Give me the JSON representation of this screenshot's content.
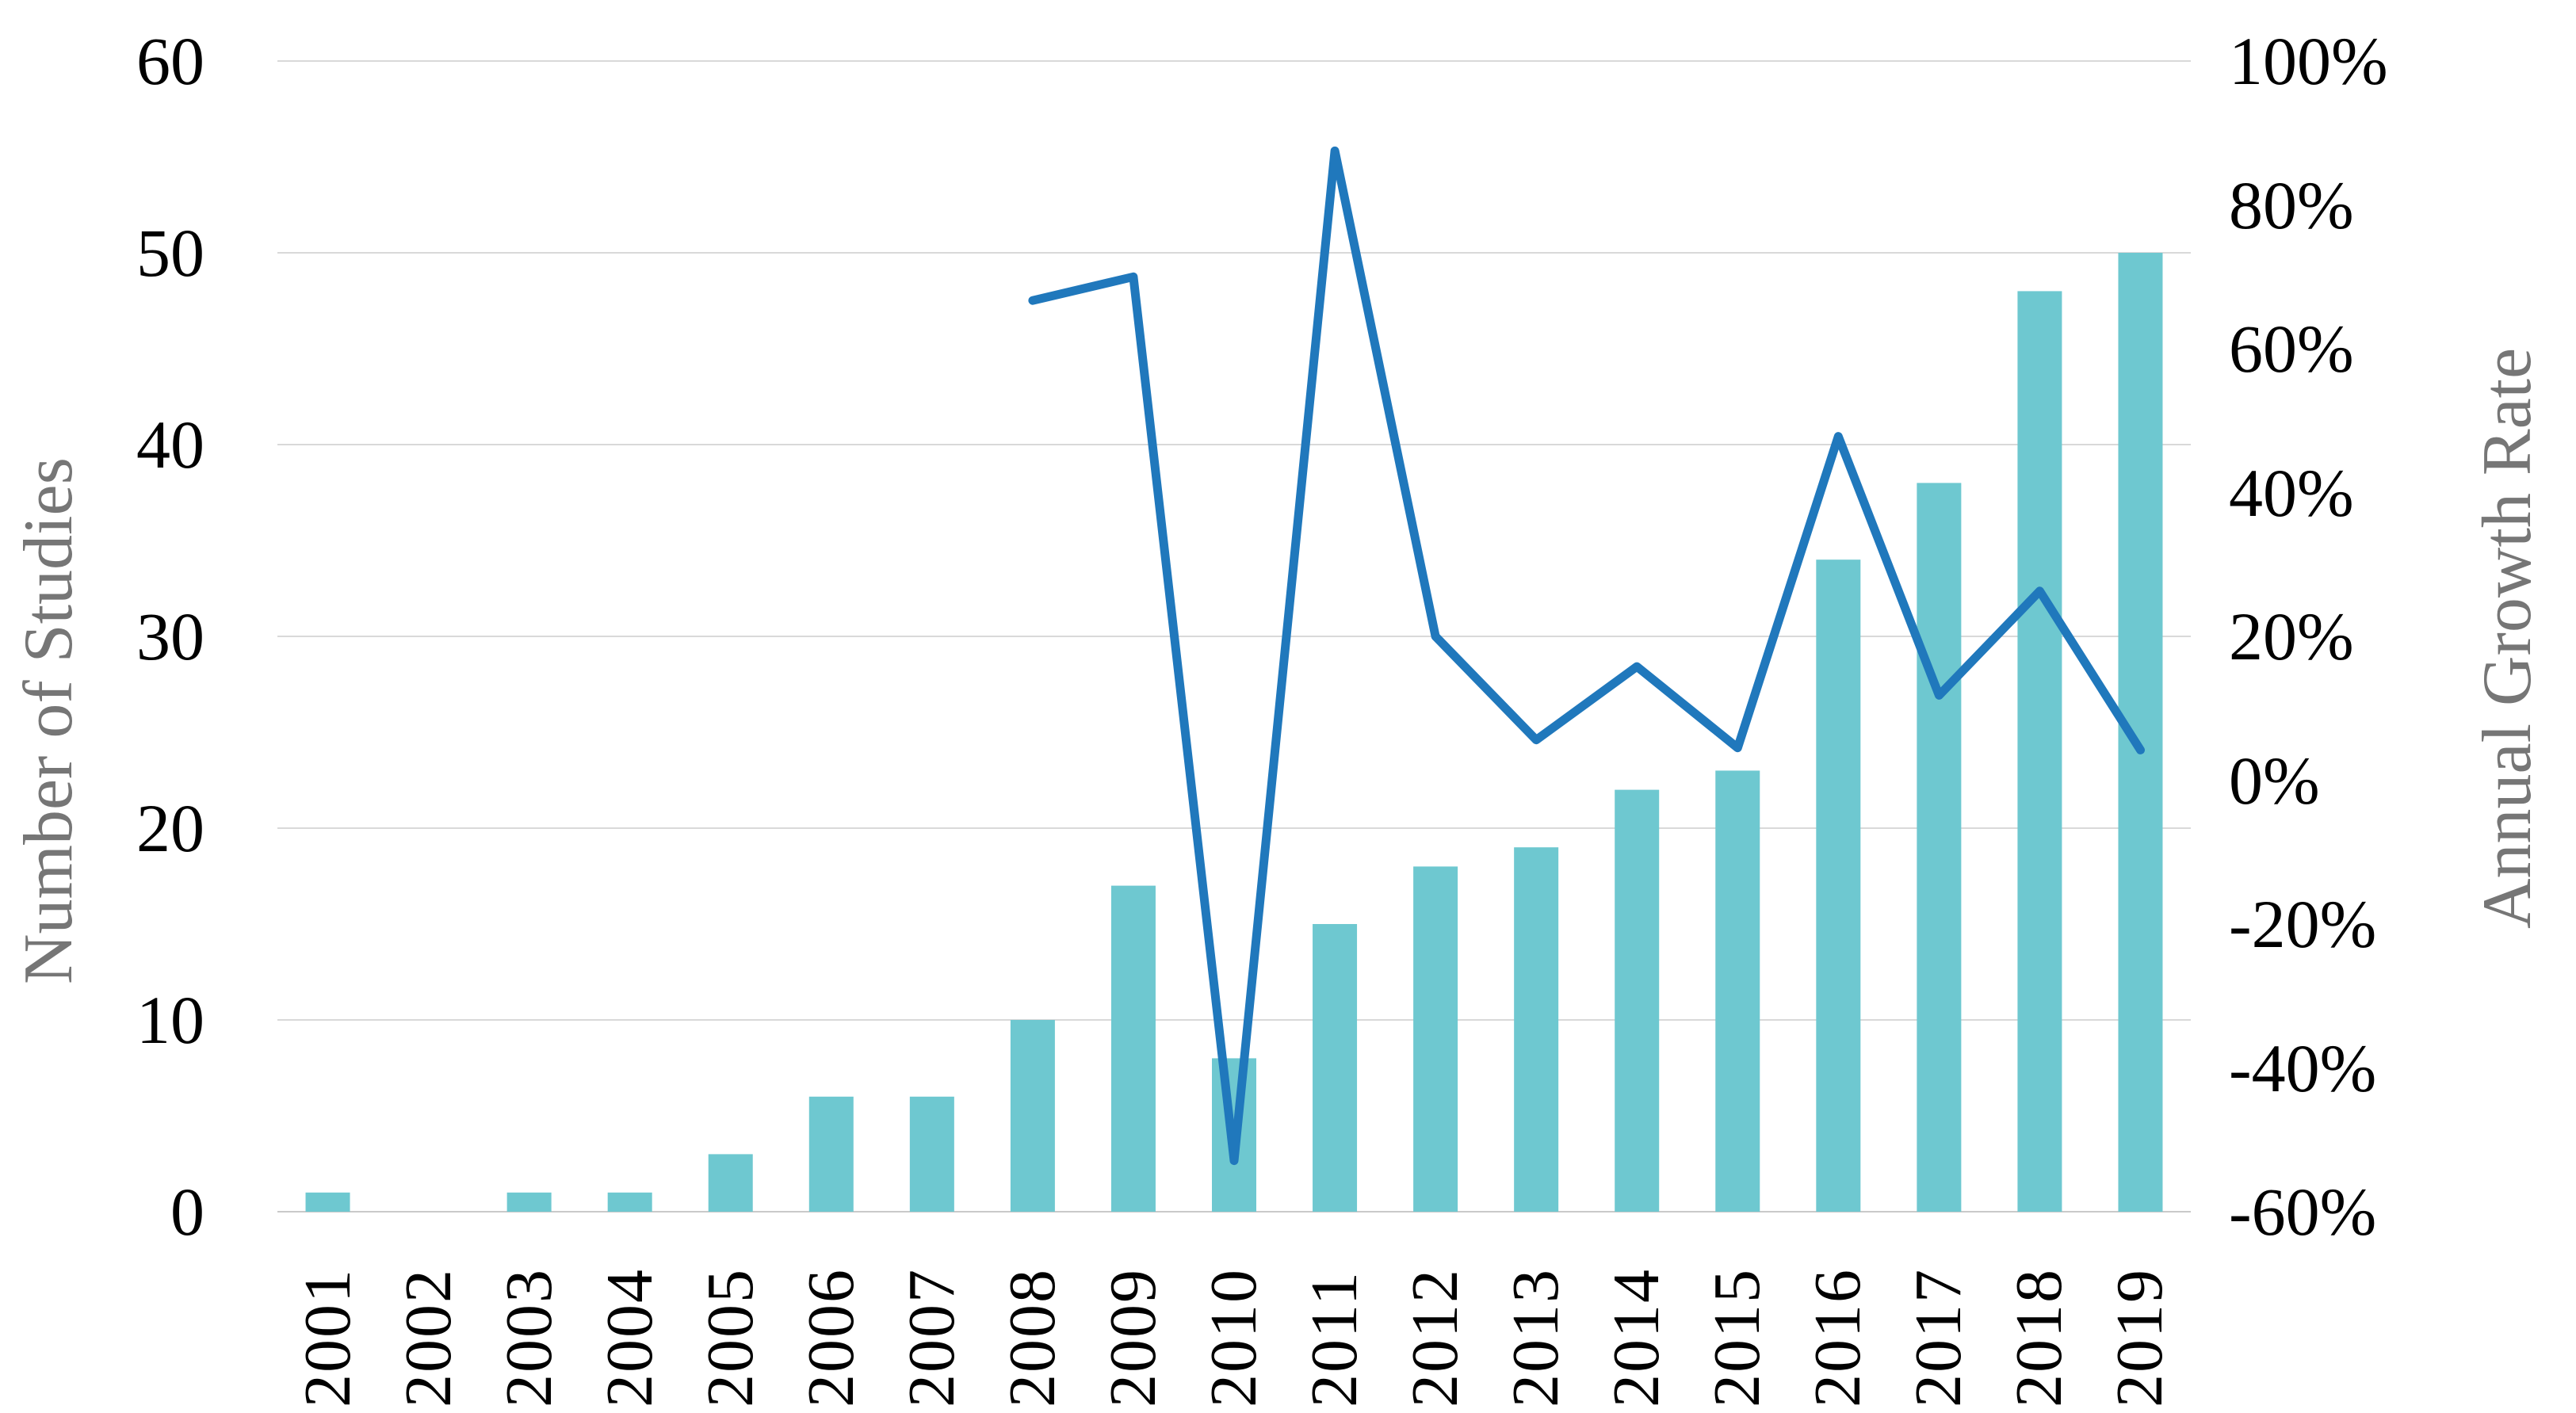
{
  "chart_data": {
    "type": "combo",
    "categories": [
      "2001",
      "2002",
      "2003",
      "2004",
      "2005",
      "2006",
      "2007",
      "2008",
      "2009",
      "2010",
      "2011",
      "2012",
      "2013",
      "2014",
      "2015",
      "2016",
      "2017",
      "2018",
      "2019"
    ],
    "series": [
      {
        "name": "Number of Studies",
        "type": "bar",
        "axis": "left",
        "values": [
          1,
          0,
          1,
          1,
          3,
          6,
          6,
          10,
          17,
          8,
          15,
          18,
          19,
          22,
          23,
          34,
          38,
          48,
          50
        ],
        "color": "#6EC8D0"
      },
      {
        "name": "Annual Growth Rate",
        "type": "line",
        "axis": "right",
        "values": [
          null,
          null,
          null,
          null,
          null,
          null,
          null,
          66.7,
          70.0,
          -52.9,
          87.5,
          20.0,
          5.6,
          15.8,
          4.5,
          47.8,
          11.8,
          26.3,
          4.2
        ],
        "color": "#2078BC"
      }
    ],
    "left_axis": {
      "title": "Number of Studies",
      "min": 0,
      "max": 60,
      "step": 10,
      "tick_labels": [
        "0",
        "10",
        "20",
        "30",
        "40",
        "50",
        "60"
      ]
    },
    "right_axis": {
      "title": "Annual Growth Rate",
      "min": -60,
      "max": 100,
      "step": 20,
      "tick_labels": [
        "-60%",
        "-40%",
        "-20%",
        "0%",
        "20%",
        "40%",
        "60%",
        "80%",
        "100%"
      ]
    },
    "grid": {
      "show": true,
      "color": "#D9D9D9",
      "baseline_color": "#C9C9C9"
    },
    "legend": {
      "show": false
    },
    "tick_color": "#000000",
    "axis_title_color": "#767676",
    "background_color": "#FFFFFF"
  }
}
